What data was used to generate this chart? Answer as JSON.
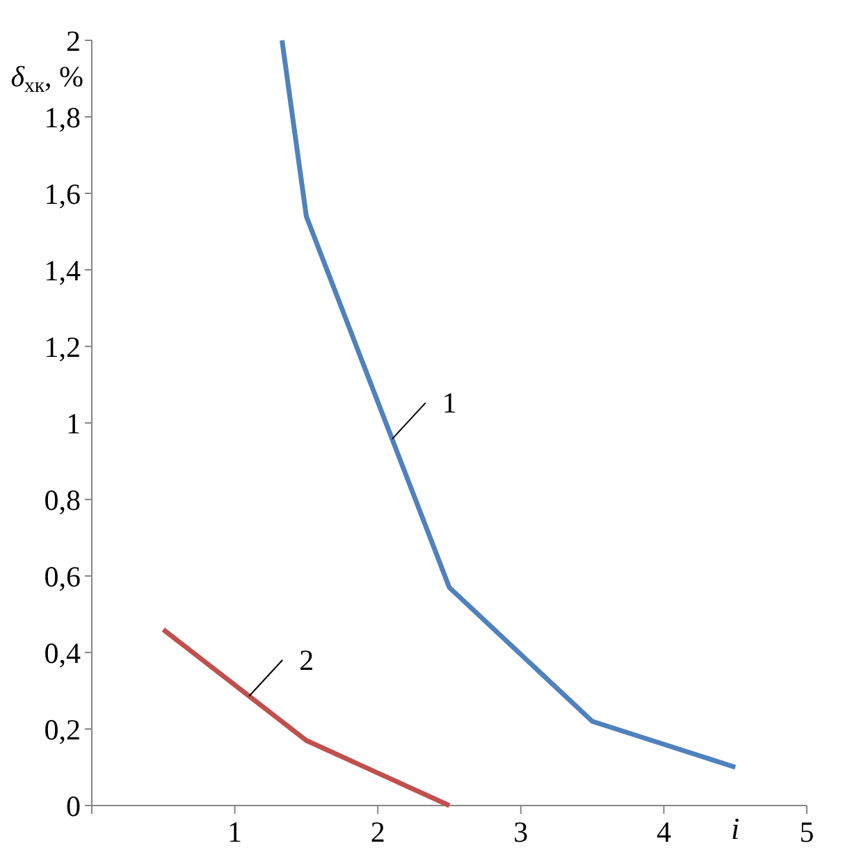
{
  "chart_data": {
    "type": "line",
    "xlabel": "i",
    "ylabel": "δ$_{хк}$, %",
    "xlim": [
      0,
      5
    ],
    "xticks": [
      {
        "value": 0,
        "label": null
      },
      1,
      2,
      3,
      4,
      5
    ],
    "ylim": [
      0,
      2
    ],
    "yticks": [
      0,
      {
        "value": 0.2,
        "label": "0,2"
      },
      {
        "value": 0.4,
        "label": "0,4"
      },
      {
        "value": 0.6,
        "label": "0,6"
      },
      {
        "value": 0.8,
        "label": "0,8"
      },
      1,
      {
        "value": 1.2,
        "label": "1,2"
      },
      {
        "value": 1.4,
        "label": "1,4"
      },
      {
        "value": 1.6,
        "label": "1,6"
      },
      {
        "value": 1.8,
        "label": "1,8"
      },
      2
    ],
    "series": [
      {
        "name": "1",
        "color": "#4f81bd",
        "x": [
          1.33,
          1.5,
          2.5,
          3.5,
          4.5
        ],
        "values": [
          2,
          1.54,
          0.57,
          0.22,
          0.1
        ]
      },
      {
        "name": "2",
        "color": "#c0504d",
        "x": [
          0.5,
          1.5,
          2.5
        ],
        "values": [
          0.46,
          0.17,
          0
        ]
      }
    ]
  }
}
